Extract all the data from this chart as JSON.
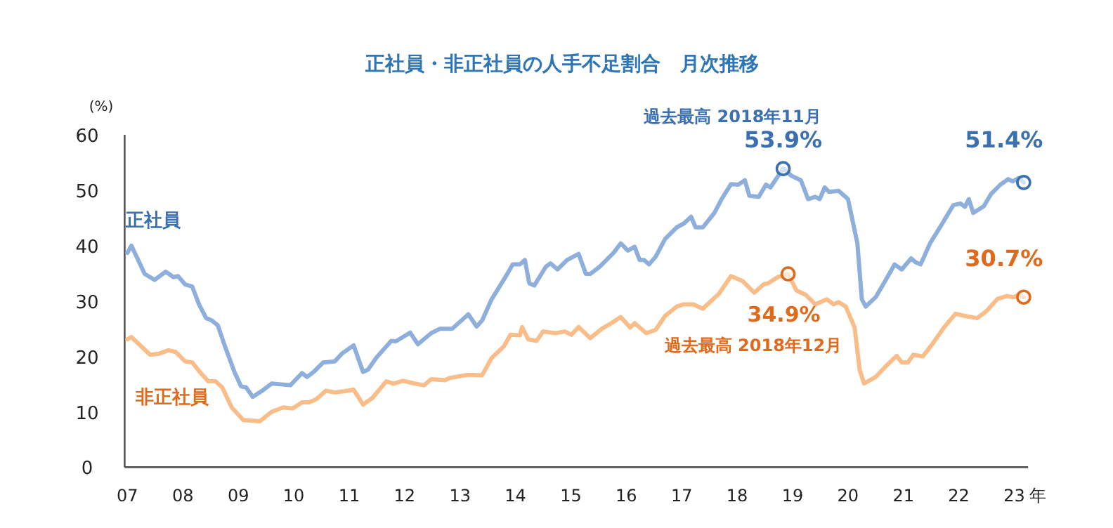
{
  "chart_data": {
    "type": "line",
    "title": "正社員・非正社員の人手不足割合　月次推移",
    "ylabel": "(%)",
    "xlabel": "年",
    "xlim": [
      2007,
      2023.25
    ],
    "xticks": [
      {
        "value": 2007,
        "label": "07"
      },
      {
        "value": 2008,
        "label": "08"
      },
      {
        "value": 2009,
        "label": "09"
      },
      {
        "value": 2010,
        "label": "10"
      },
      {
        "value": 2011,
        "label": "11"
      },
      {
        "value": 2012,
        "label": "12"
      },
      {
        "value": 2013,
        "label": "13"
      },
      {
        "value": 2014,
        "label": "14"
      },
      {
        "value": 2015,
        "label": "15"
      },
      {
        "value": 2016,
        "label": "16"
      },
      {
        "value": 2017,
        "label": "17"
      },
      {
        "value": 2018,
        "label": "18"
      },
      {
        "value": 2019,
        "label": "19"
      },
      {
        "value": 2020,
        "label": "20"
      },
      {
        "value": 2021,
        "label": "21"
      },
      {
        "value": 2022,
        "label": "22"
      },
      {
        "value": 2023,
        "label": "23"
      }
    ],
    "ylim": [
      0,
      60
    ],
    "yticks": [
      0,
      10,
      20,
      30,
      40,
      50,
      60
    ],
    "grid": false,
    "series": [
      {
        "name": "正社員",
        "color": "#8eaedb",
        "x": [
          2007.0,
          2007.07,
          2007.31,
          2007.49,
          2007.69,
          2007.83,
          2007.91,
          2008.04,
          2008.17,
          2008.29,
          2008.42,
          2008.52,
          2008.63,
          2008.76,
          2008.93,
          2009.05,
          2009.14,
          2009.26,
          2009.43,
          2009.6,
          2009.94,
          2010.15,
          2010.24,
          2010.36,
          2010.53,
          2010.74,
          2010.87,
          2011.08,
          2011.25,
          2011.34,
          2011.5,
          2011.76,
          2011.84,
          2012.1,
          2012.24,
          2012.48,
          2012.64,
          2012.86,
          2013.15,
          2013.3,
          2013.4,
          2013.57,
          2013.83,
          2013.95,
          2014.08,
          2014.17,
          2014.25,
          2014.34,
          2014.55,
          2014.63,
          2014.76,
          2014.93,
          2015.14,
          2015.27,
          2015.35,
          2015.52,
          2015.77,
          2015.9,
          2016.03,
          2016.15,
          2016.24,
          2016.32,
          2016.41,
          2016.53,
          2016.7,
          2016.91,
          2017.04,
          2017.17,
          2017.25,
          2017.38,
          2017.59,
          2017.72,
          2017.89,
          2018.02,
          2018.14,
          2018.22,
          2018.39,
          2018.52,
          2018.6,
          2018.83,
          2018.98,
          2019.15,
          2019.28,
          2019.41,
          2019.49,
          2019.58,
          2019.66,
          2019.83,
          2020.0,
          2020.17,
          2020.25,
          2020.32,
          2020.5,
          2020.67,
          2020.84,
          2020.97,
          2021.14,
          2021.22,
          2021.31,
          2021.48,
          2021.69,
          2021.9,
          2022.03,
          2022.11,
          2022.18,
          2022.26,
          2022.45,
          2022.58,
          2022.75,
          2022.89,
          2022.97,
          2023.08,
          2023.17
        ],
        "values": [
          38.7,
          40.0,
          34.9,
          33.8,
          35.3,
          34.3,
          34.5,
          33.0,
          32.6,
          29.4,
          26.9,
          26.5,
          25.6,
          21.8,
          17.2,
          14.6,
          14.4,
          12.7,
          13.8,
          15.1,
          14.8,
          17.0,
          16.3,
          17.2,
          18.9,
          19.1,
          20.5,
          22.0,
          17.2,
          17.6,
          19.9,
          22.8,
          22.7,
          24.3,
          22.2,
          24.2,
          25.0,
          25.0,
          27.6,
          25.4,
          26.5,
          30.3,
          34.5,
          36.6,
          36.6,
          37.4,
          33.2,
          32.8,
          36.2,
          36.8,
          35.7,
          37.4,
          38.5,
          34.9,
          34.9,
          36.2,
          38.7,
          40.4,
          39.1,
          39.8,
          37.4,
          37.4,
          36.6,
          38.0,
          41.2,
          43.3,
          44.0,
          45.2,
          43.3,
          43.3,
          45.9,
          48.4,
          51.1,
          51.0,
          51.8,
          49.0,
          48.8,
          51.0,
          50.5,
          53.9,
          52.6,
          51.8,
          48.4,
          48.8,
          48.4,
          50.5,
          49.7,
          49.9,
          48.4,
          40.4,
          30.3,
          29.0,
          30.7,
          33.6,
          36.6,
          35.7,
          37.7,
          37.0,
          36.6,
          40.4,
          43.8,
          47.3,
          47.6,
          47.0,
          48.4,
          45.9,
          47.1,
          49.3,
          51.0,
          52.0,
          51.6,
          52.2,
          51.4
        ]
      },
      {
        "type": "scatter",
        "color": "#3a6fb0",
        "x": [
          2018.83,
          2023.17
        ],
        "values": [
          53.9,
          51.4
        ]
      },
      {
        "name": "非正社員",
        "color": "#f9bd8a",
        "x": [
          2007.0,
          2007.07,
          2007.41,
          2007.57,
          2007.74,
          2007.87,
          2008.04,
          2008.17,
          2008.33,
          2008.46,
          2008.59,
          2008.71,
          2008.88,
          2009.09,
          2009.39,
          2009.6,
          2009.81,
          2009.98,
          2010.15,
          2010.28,
          2010.41,
          2010.58,
          2010.74,
          2010.91,
          2011.08,
          2011.25,
          2011.42,
          2011.67,
          2011.8,
          2011.97,
          2012.18,
          2012.35,
          2012.48,
          2012.73,
          2012.81,
          2013.15,
          2013.4,
          2013.57,
          2013.79,
          2013.91,
          2014.08,
          2014.12,
          2014.23,
          2014.38,
          2014.5,
          2014.72,
          2014.89,
          2015.01,
          2015.14,
          2015.35,
          2015.56,
          2015.73,
          2015.9,
          2016.07,
          2016.15,
          2016.36,
          2016.53,
          2016.7,
          2016.91,
          2017.04,
          2017.21,
          2017.38,
          2017.67,
          2017.89,
          2018.1,
          2018.31,
          2018.48,
          2018.56,
          2018.73,
          2018.92,
          2019.07,
          2019.24,
          2019.41,
          2019.62,
          2019.74,
          2019.83,
          2019.96,
          2020.12,
          2020.21,
          2020.29,
          2020.5,
          2020.72,
          2020.88,
          2020.97,
          2021.08,
          2021.18,
          2021.35,
          2021.52,
          2021.73,
          2021.94,
          2022.11,
          2022.33,
          2022.49,
          2022.7,
          2022.87,
          2022.99,
          2023.08,
          2023.17
        ],
        "values": [
          23.1,
          23.5,
          20.3,
          20.5,
          21.1,
          20.8,
          19.1,
          18.9,
          16.9,
          15.5,
          15.5,
          14.4,
          10.8,
          8.5,
          8.3,
          10.0,
          10.8,
          10.6,
          11.7,
          11.7,
          12.3,
          13.8,
          13.5,
          13.7,
          14.0,
          11.3,
          12.5,
          15.5,
          15.1,
          15.6,
          15.1,
          14.8,
          15.9,
          15.7,
          16.1,
          16.7,
          16.6,
          19.7,
          21.8,
          23.9,
          23.8,
          25.3,
          23.1,
          22.8,
          24.5,
          24.2,
          24.5,
          23.9,
          25.3,
          23.3,
          25.0,
          26.0,
          27.1,
          25.2,
          26.0,
          24.2,
          24.8,
          27.3,
          29.0,
          29.4,
          29.4,
          28.6,
          31.3,
          34.5,
          33.6,
          31.5,
          33.0,
          33.2,
          34.3,
          34.9,
          31.9,
          31.1,
          29.4,
          30.3,
          29.4,
          29.8,
          29.0,
          25.2,
          17.6,
          15.1,
          16.3,
          18.6,
          20.1,
          18.9,
          18.9,
          20.3,
          20.0,
          22.2,
          25.2,
          27.7,
          27.3,
          26.9,
          28.1,
          30.4,
          30.9,
          30.7,
          31.1,
          30.7
        ]
      },
      {
        "type": "scatter",
        "color": "#e06a1c",
        "x": [
          2018.92,
          2023.17
        ],
        "values": [
          34.9,
          30.7
        ]
      }
    ],
    "annotations": [
      {
        "text": "過去最高 2018年11月",
        "x": 2018.83,
        "y": 53.9
      },
      {
        "text": "53.9%",
        "x": 2018.83,
        "y": 53.9
      },
      {
        "text": "51.4%",
        "x": 2023.17,
        "y": 51.4
      },
      {
        "text": "30.7%",
        "x": 2023.17,
        "y": 30.7
      },
      {
        "text": "34.9%",
        "x": 2018.92,
        "y": 34.9
      },
      "過去最高 2018年12月"
    ]
  }
}
